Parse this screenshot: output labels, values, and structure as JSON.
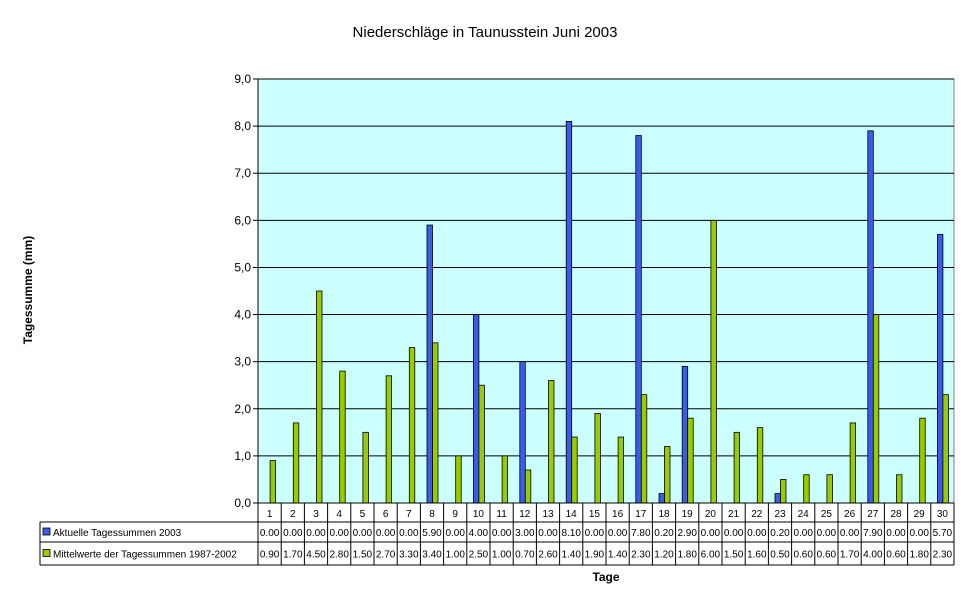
{
  "chart_data": {
    "type": "bar",
    "title": "Niederschläge in Taunusstein Juni 2003",
    "xlabel": "Tage",
    "ylabel": "Tagessumme (mm)",
    "ylim": [
      0,
      9
    ],
    "yticks": [
      "0,0",
      "1,0",
      "2,0",
      "3,0",
      "4,0",
      "5,0",
      "6,0",
      "7,0",
      "8,0",
      "9,0"
    ],
    "grid": true,
    "legend": "data-table",
    "categories": [
      "1",
      "2",
      "3",
      "4",
      "5",
      "6",
      "7",
      "8",
      "9",
      "10",
      "11",
      "12",
      "13",
      "14",
      "15",
      "16",
      "17",
      "18",
      "19",
      "20",
      "21",
      "22",
      "23",
      "24",
      "25",
      "26",
      "27",
      "28",
      "29",
      "30"
    ],
    "series": [
      {
        "name": "Aktuelle Tagessummen  2003",
        "color": "#3a5de8",
        "values": [
          0,
          0,
          0,
          0,
          0,
          0,
          0,
          5.9,
          0,
          4.0,
          0,
          3.0,
          0,
          8.1,
          0,
          0,
          7.8,
          0.2,
          2.9,
          0,
          0,
          0,
          0.2,
          0,
          0,
          0,
          7.9,
          0,
          0,
          5.7
        ],
        "labels": [
          "0.00",
          "0.00",
          "0.00",
          "0.00",
          "0.00",
          "0.00",
          "0.00",
          "5.90",
          "0.00",
          "4.00",
          "0.00",
          "3.00",
          "0.00",
          "8.10",
          "0.00",
          "0.00",
          "7.80",
          "0.20",
          "2.90",
          "0.00",
          "0.00",
          "0.00",
          "0.20",
          "0.00",
          "0.00",
          "0.00",
          "7.90",
          "0.00",
          "0.00",
          "5.70"
        ]
      },
      {
        "name": "Mittelwerte der Tagessummen 1987-2002",
        "color": "#99cc00",
        "values": [
          0.9,
          1.7,
          4.5,
          2.8,
          1.5,
          2.7,
          3.3,
          3.4,
          1.0,
          2.5,
          1.0,
          0.7,
          2.6,
          1.4,
          1.9,
          1.4,
          2.3,
          1.2,
          1.8,
          6.0,
          1.5,
          1.6,
          0.5,
          0.6,
          0.6,
          1.7,
          4.0,
          0.6,
          1.8,
          2.3
        ],
        "labels": [
          "0.90",
          "1.70",
          "4.50",
          "2.80",
          "1.50",
          "2.70",
          "3.30",
          "3.40",
          "1.00",
          "2.50",
          "1.00",
          "0.70",
          "2.60",
          "1.40",
          "1.90",
          "1.40",
          "2.30",
          "1.20",
          "1.80",
          "6.00",
          "1.50",
          "1.60",
          "0.50",
          "0.60",
          "0.60",
          "1.70",
          "4.00",
          "0.60",
          "1.80",
          "2.30"
        ]
      }
    ],
    "plot_bg": "#ccffff"
  }
}
